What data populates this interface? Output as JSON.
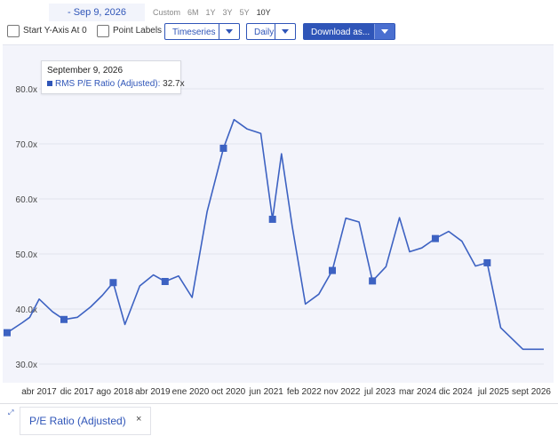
{
  "toolbar": {
    "date_range": "- Sep 9, 2026",
    "ranges": [
      "Custom",
      "6M",
      "1Y",
      "3Y",
      "5Y",
      "10Y"
    ],
    "active_range": "10Y",
    "start_y_axis_label": "Start Y-Axis At 0",
    "point_labels_label": "Point Labels",
    "timeseries_label": "Timeseries",
    "frequency_label": "Daily",
    "download_label": "Download as..."
  },
  "tooltip": {
    "date": "September 9, 2026",
    "series": "RMS P/E Ratio (Adjusted):",
    "value": "32.7x"
  },
  "legend": {
    "label": "P/E Ratio (Adjusted)",
    "close": "×"
  },
  "colors": {
    "series": "#3d62c2",
    "accent": "#2f55b8",
    "plot_bg": "#f3f4fb"
  },
  "chart_data": {
    "type": "line",
    "x_tick_labels": [
      "abr 2017",
      "dic 2017",
      "ago 2018",
      "abr 2019",
      "ene 2020",
      "oct 2020",
      "jun 2021",
      "feb 2022",
      "nov 2022",
      "jul 2023",
      "mar 2024",
      "dic 2024",
      "jul 2025",
      "sept 2026"
    ],
    "y_tick_labels": [
      "30.0x",
      "40.0x",
      "50.0x",
      "60.0x",
      "70.0x",
      "80.0x"
    ],
    "ylim": [
      28,
      85
    ],
    "xlim": [
      "2016-09-09",
      "2026-09-09"
    ],
    "grid": true,
    "series": [
      {
        "name": "P/E Ratio (Adjusted)",
        "x": [
          "2016-09-09",
          "2016-12-20",
          "2017-02-10",
          "2017-04-15",
          "2017-07-15",
          "2017-10-01",
          "2018-01-01",
          "2018-04-01",
          "2018-06-20",
          "2018-09-01",
          "2018-11-20",
          "2019-03-01",
          "2019-06-01",
          "2019-08-20",
          "2019-11-20",
          "2020-02-20",
          "2020-06-01",
          "2020-09-20",
          "2020-12-01",
          "2021-03-01",
          "2021-06-01",
          "2021-08-20",
          "2021-10-20",
          "2022-01-01",
          "2022-04-01",
          "2022-07-01",
          "2022-10-01",
          "2023-01-01",
          "2023-04-01",
          "2023-07-01",
          "2023-10-01",
          "2024-01-01",
          "2024-03-10",
          "2024-06-01",
          "2024-09-01",
          "2024-12-01",
          "2025-03-01",
          "2025-06-01",
          "2025-08-20",
          "2025-11-20",
          "2026-04-20",
          "2026-07-15",
          "2026-09-09"
        ],
        "y": [
          35.7,
          37.5,
          38.5,
          41.8,
          39.5,
          38.1,
          38.5,
          40.4,
          42.5,
          44.8,
          37.2,
          44.2,
          46.2,
          45.0,
          46.0,
          42.1,
          57.7,
          69.2,
          74.4,
          72.7,
          71.9,
          56.3,
          68.2,
          55.0,
          40.9,
          42.7,
          47.0,
          56.5,
          55.8,
          45.1,
          47.7,
          56.6,
          50.4,
          51.1,
          52.8,
          54.1,
          52.3,
          47.8,
          48.4,
          36.6,
          32.7,
          32.7,
          32.7
        ],
        "markers_at": [
          "2016-09-09",
          "2017-10-01",
          "2018-09-01",
          "2019-08-20",
          "2020-09-20",
          "2021-08-20",
          "2022-10-01",
          "2023-07-01",
          "2024-09-01",
          "2025-08-20"
        ]
      }
    ]
  }
}
